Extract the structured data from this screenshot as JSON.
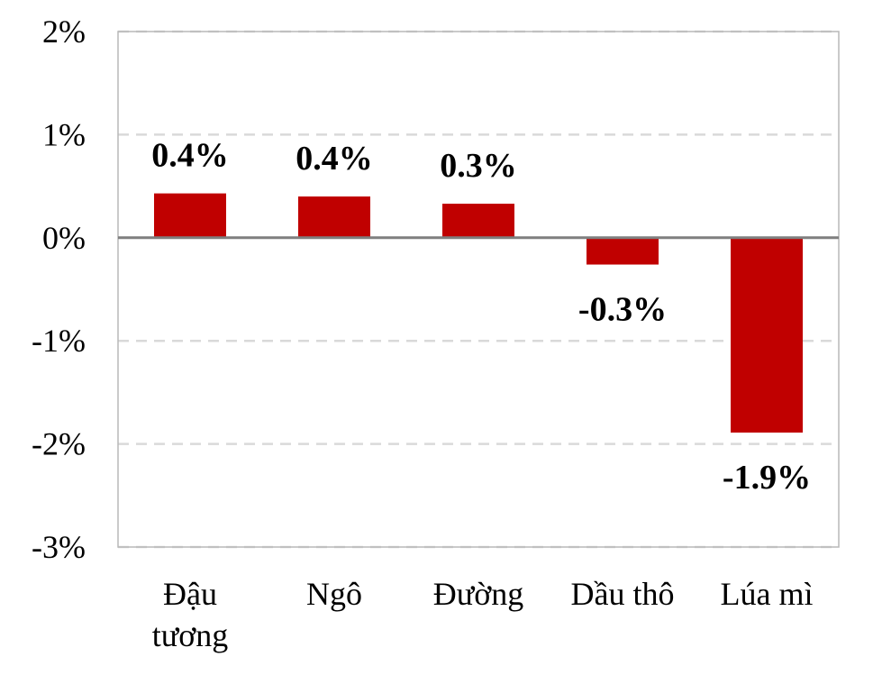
{
  "chart_data": {
    "type": "bar",
    "title": "",
    "xlabel": "",
    "ylabel": "",
    "categories": [
      [
        "Đậu",
        "tương"
      ],
      [
        "Ngô"
      ],
      [
        "Đường"
      ],
      [
        "Dầu thô"
      ],
      [
        "Lúa mì"
      ]
    ],
    "values": [
      0.43,
      0.4,
      0.33,
      -0.26,
      -1.89
    ],
    "data_labels": [
      "0.4%",
      "0.4%",
      "0.3%",
      "-0.3%",
      "-1.9%"
    ],
    "ylim": [
      -3,
      2
    ],
    "yticks": [
      2,
      1,
      0,
      -1,
      -2,
      -3
    ],
    "ytick_labels": [
      "2%",
      "1%",
      "0%",
      "-1%",
      "-2%",
      "-3%"
    ],
    "grid": true,
    "bar_color": "#c00000",
    "legend": "none"
  }
}
